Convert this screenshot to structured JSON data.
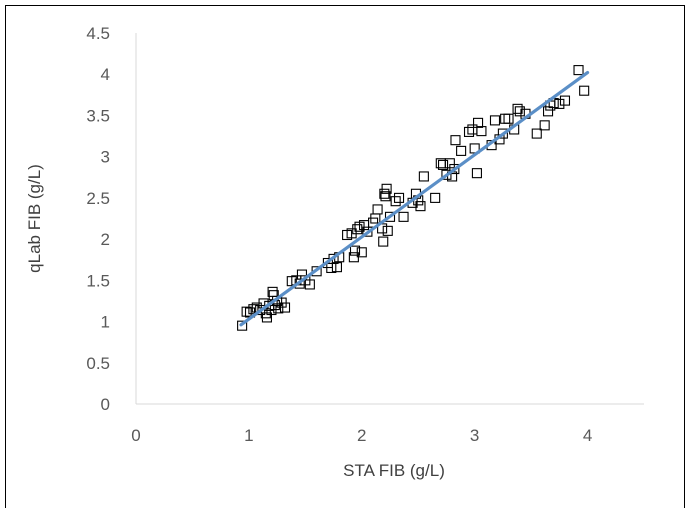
{
  "chart_data": {
    "type": "scatter",
    "xlabel": "STA FIB (g/L)",
    "ylabel": "qLab FIB (g/L)",
    "xlim": [
      0,
      4.5
    ],
    "ylim": [
      0,
      4.5
    ],
    "x_ticks": [
      "0",
      "1",
      "2",
      "3",
      "4"
    ],
    "y_ticks": [
      "0",
      "0.5",
      "1",
      "1.5",
      "2",
      "2.5",
      "3",
      "3.5",
      "4",
      "4.5"
    ],
    "grid": false,
    "legend": "none",
    "marker": "open-square",
    "trendline": {
      "x": [
        0.93,
        4.0
      ],
      "y": [
        0.96,
        4.02
      ],
      "color": "#5b8fc7"
    },
    "series": [
      {
        "points": [
          [
            0.94,
            0.95
          ],
          [
            0.98,
            1.12
          ],
          [
            1.01,
            1.11
          ],
          [
            1.04,
            1.15
          ],
          [
            1.07,
            1.17
          ],
          [
            1.1,
            1.14
          ],
          [
            1.13,
            1.22
          ],
          [
            1.15,
            1.1
          ],
          [
            1.16,
            1.05
          ],
          [
            1.18,
            1.19
          ],
          [
            1.2,
            1.14
          ],
          [
            1.21,
            1.36
          ],
          [
            1.22,
            1.32
          ],
          [
            1.23,
            1.2
          ],
          [
            1.25,
            1.25
          ],
          [
            1.26,
            1.16
          ],
          [
            1.29,
            1.23
          ],
          [
            1.32,
            1.17
          ],
          [
            1.38,
            1.49
          ],
          [
            1.42,
            1.5
          ],
          [
            1.45,
            1.46
          ],
          [
            1.47,
            1.57
          ],
          [
            1.5,
            1.5
          ],
          [
            1.54,
            1.45
          ],
          [
            1.6,
            1.61
          ],
          [
            1.7,
            1.71
          ],
          [
            1.73,
            1.65
          ],
          [
            1.75,
            1.76
          ],
          [
            1.78,
            1.66
          ],
          [
            1.8,
            1.78
          ],
          [
            1.87,
            2.05
          ],
          [
            1.91,
            2.07
          ],
          [
            1.93,
            1.78
          ],
          [
            1.94,
            1.86
          ],
          [
            1.96,
            2.12
          ],
          [
            1.98,
            2.15
          ],
          [
            2.0,
            1.84
          ],
          [
            2.02,
            2.17
          ],
          [
            2.05,
            2.09
          ],
          [
            2.1,
            2.2
          ],
          [
            2.12,
            2.25
          ],
          [
            2.14,
            2.36
          ],
          [
            2.18,
            2.13
          ],
          [
            2.19,
            1.97
          ],
          [
            2.2,
            2.55
          ],
          [
            2.21,
            2.52
          ],
          [
            2.22,
            2.61
          ],
          [
            2.23,
            2.1
          ],
          [
            2.25,
            2.27
          ],
          [
            2.3,
            2.46
          ],
          [
            2.33,
            2.5
          ],
          [
            2.37,
            2.27
          ],
          [
            2.45,
            2.44
          ],
          [
            2.48,
            2.55
          ],
          [
            2.5,
            2.47
          ],
          [
            2.52,
            2.4
          ],
          [
            2.55,
            2.76
          ],
          [
            2.65,
            2.5
          ],
          [
            2.7,
            2.92
          ],
          [
            2.72,
            2.9
          ],
          [
            2.75,
            2.78
          ],
          [
            2.78,
            2.92
          ],
          [
            2.8,
            2.76
          ],
          [
            2.82,
            2.85
          ],
          [
            2.83,
            3.2
          ],
          [
            2.88,
            3.07
          ],
          [
            2.95,
            3.3
          ],
          [
            2.98,
            3.33
          ],
          [
            3.0,
            3.1
          ],
          [
            3.02,
            2.8
          ],
          [
            3.03,
            3.41
          ],
          [
            3.06,
            3.31
          ],
          [
            3.15,
            3.14
          ],
          [
            3.18,
            3.44
          ],
          [
            3.22,
            3.21
          ],
          [
            3.25,
            3.28
          ],
          [
            3.27,
            3.46
          ],
          [
            3.3,
            3.46
          ],
          [
            3.35,
            3.33
          ],
          [
            3.38,
            3.58
          ],
          [
            3.4,
            3.55
          ],
          [
            3.45,
            3.52
          ],
          [
            3.55,
            3.28
          ],
          [
            3.62,
            3.38
          ],
          [
            3.65,
            3.55
          ],
          [
            3.67,
            3.62
          ],
          [
            3.7,
            3.65
          ],
          [
            3.75,
            3.64
          ],
          [
            3.8,
            3.68
          ],
          [
            3.92,
            4.05
          ],
          [
            3.97,
            3.8
          ]
        ]
      }
    ]
  }
}
